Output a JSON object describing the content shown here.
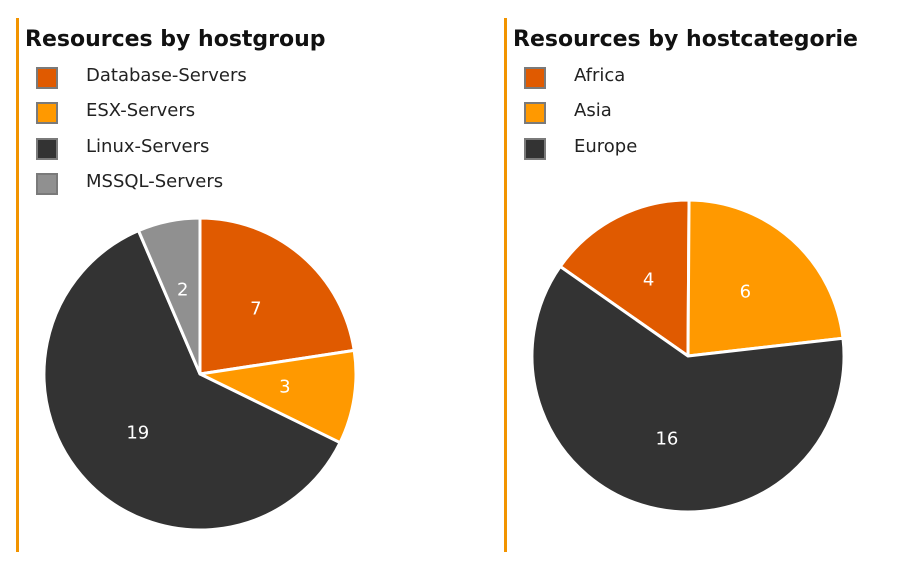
{
  "chart_data": [
    {
      "type": "pie",
      "title": "Resources by hostgroup",
      "categories": [
        "Database-Servers",
        "ESX-Servers",
        "Linux-Servers",
        "MSSQL-Servers"
      ],
      "values": [
        7,
        3,
        19,
        2
      ],
      "colors": [
        "#e05a00",
        "#ff9900",
        "#333333",
        "#909090"
      ],
      "legend_position": "top-left"
    },
    {
      "type": "pie",
      "title": "Resources by hostcategorie",
      "categories": [
        "Africa",
        "Asia",
        "Europe"
      ],
      "values": [
        4,
        6,
        16
      ],
      "colors": [
        "#e05a00",
        "#ff9900",
        "#333333"
      ],
      "legend_position": "top-left"
    }
  ],
  "colors": {
    "panel_border": "#f29400",
    "title_text": "#111111",
    "legend_text": "#222222",
    "swatch_border": "#7a7a7a",
    "slice_label": "#ffffff"
  }
}
